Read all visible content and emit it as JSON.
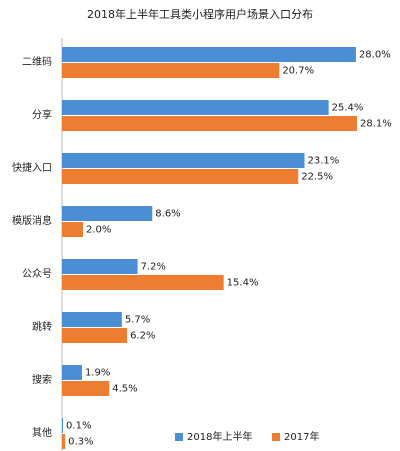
{
  "chart_data": {
    "type": "bar",
    "orientation": "horizontal",
    "title": "2018年上半年工具类小程序用户场景入口分布",
    "categories": [
      "二维码",
      "分享",
      "快捷入口",
      "模版消息",
      "公众号",
      "跳转",
      "搜索",
      "其他"
    ],
    "series": [
      {
        "name": "2018年上半年",
        "color": "#4a8fd4",
        "values": [
          28.0,
          25.4,
          23.1,
          8.6,
          7.2,
          5.7,
          1.9,
          0.1
        ],
        "value_labels": [
          "28.0%",
          "25.4%",
          "23.1%",
          "8.6%",
          "7.2%",
          "5.7%",
          "1.9%",
          "0.1%"
        ]
      },
      {
        "name": "2017年",
        "color": "#ed7d31",
        "values": [
          20.7,
          28.1,
          22.5,
          2.0,
          15.4,
          6.2,
          4.5,
          0.3
        ],
        "value_labels": [
          "20.7%",
          "28.1%",
          "22.5%",
          "2.0%",
          "15.4%",
          "6.2%",
          "4.5%",
          "0.3%"
        ]
      }
    ],
    "legend": "bottom"
  }
}
